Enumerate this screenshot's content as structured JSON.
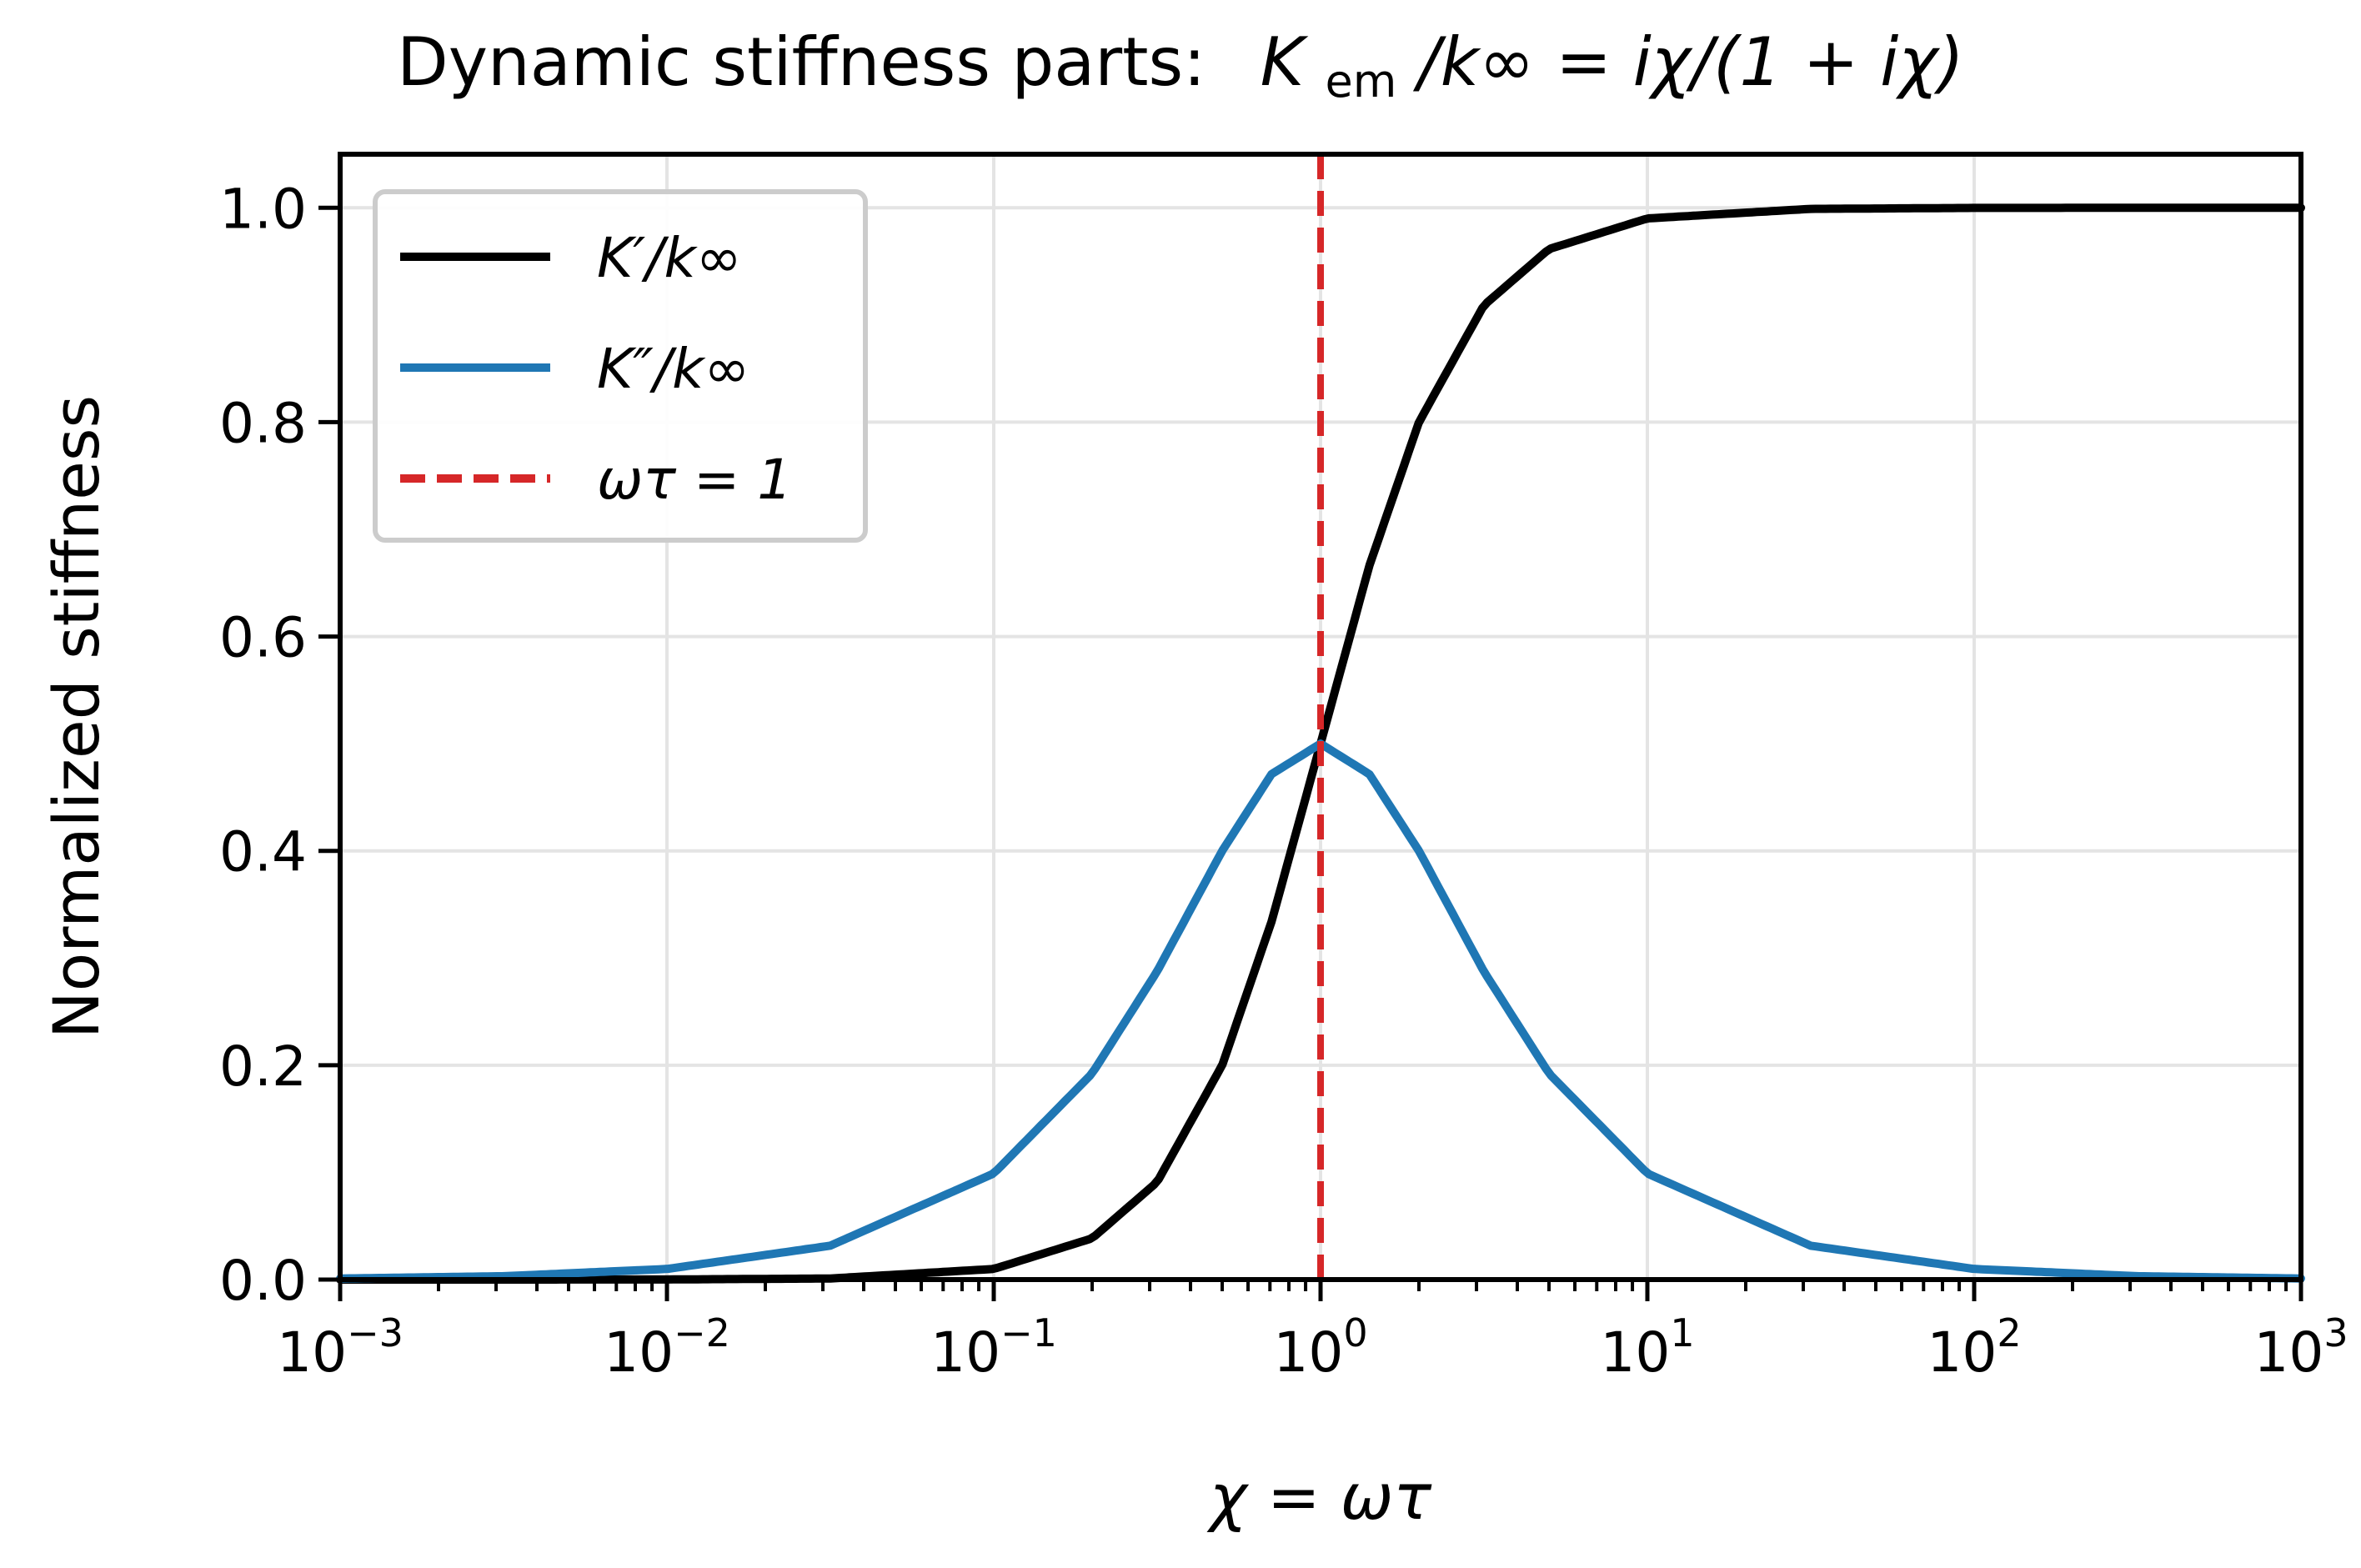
{
  "chart_data": {
    "type": "line",
    "title_prefix": "Dynamic stiffness parts:",
    "title_formula": {
      "K": "K",
      "sub": "em",
      "rest": "/k∞ = iχ/(1 + iχ)"
    },
    "xlabel": "χ = ωτ",
    "ylabel": "Normalized stiffness",
    "x_scale": "log",
    "xlim": [
      0.001,
      1000
    ],
    "ylim": [
      0,
      1.05
    ],
    "xticks": [
      {
        "value": 0.001,
        "base": "10",
        "exp": "−3"
      },
      {
        "value": 0.01,
        "base": "10",
        "exp": "−2"
      },
      {
        "value": 0.1,
        "base": "10",
        "exp": "−1"
      },
      {
        "value": 1,
        "base": "10",
        "exp": "0"
      },
      {
        "value": 10,
        "base": "10",
        "exp": "1"
      },
      {
        "value": 100,
        "base": "10",
        "exp": "2"
      },
      {
        "value": 1000,
        "base": "10",
        "exp": "3"
      }
    ],
    "yticks": [
      {
        "value": 0.0,
        "label": "0.0"
      },
      {
        "value": 0.2,
        "label": "0.2"
      },
      {
        "value": 0.4,
        "label": "0.4"
      },
      {
        "value": 0.6,
        "label": "0.6"
      },
      {
        "value": 0.8,
        "label": "0.8"
      },
      {
        "value": 1.0,
        "label": "1.0"
      }
    ],
    "grid": true,
    "legend_position": "top-left",
    "series": [
      {
        "name": "K′/k∞",
        "color": "#000000",
        "style": "solid",
        "x": [
          0.001,
          0.00316,
          0.01,
          0.0316,
          0.1,
          0.2,
          0.316,
          0.5,
          0.708,
          1,
          1.41,
          2,
          3.16,
          5,
          10,
          31.6,
          100,
          316,
          1000
        ],
        "values": [
          1e-06,
          1e-05,
          0.0001,
          0.001,
          0.0099,
          0.0385,
          0.0909,
          0.2,
          0.334,
          0.5,
          0.666,
          0.8,
          0.909,
          0.9615,
          0.9901,
          0.999,
          0.9999,
          0.99999,
          1.0
        ]
      },
      {
        "name": "K″/k∞",
        "color": "#1f77b4",
        "style": "solid",
        "x": [
          0.001,
          0.00316,
          0.01,
          0.0316,
          0.1,
          0.2,
          0.316,
          0.5,
          0.708,
          1,
          1.41,
          2,
          3.16,
          5,
          10,
          31.6,
          100,
          316,
          1000
        ],
        "values": [
          0.001,
          0.00316,
          0.0099,
          0.0316,
          0.099,
          0.1923,
          0.2875,
          0.4,
          0.4716,
          0.5,
          0.4716,
          0.4,
          0.2875,
          0.1923,
          0.099,
          0.0316,
          0.0099,
          0.00316,
          0.001
        ]
      }
    ],
    "reference_line": {
      "name": "ωτ = 1",
      "x": 1,
      "color": "#d62728",
      "style": "dashed"
    }
  }
}
